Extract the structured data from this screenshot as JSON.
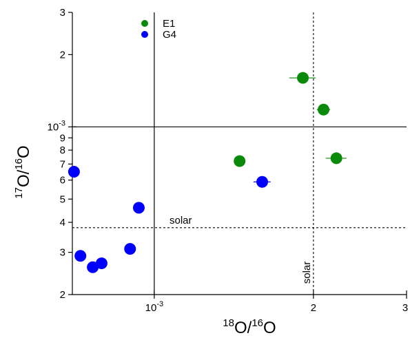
{
  "chart_data": {
    "type": "scatter",
    "xscale": "log",
    "yscale": "log",
    "xlim": [
      0.0007,
      0.003
    ],
    "ylim": [
      0.0002,
      0.003
    ],
    "xlabel_main": "O/",
    "xlabel_sup1": "18",
    "xlabel_sup2": "16",
    "xlabel_tail": "O",
    "ylabel_main": "O/",
    "ylabel_sup1": "17",
    "ylabel_sup2": "16",
    "ylabel_tail": "O",
    "x_ticks": [
      {
        "value": 0.001,
        "label": "10",
        "exp": "-3"
      },
      {
        "value": 0.002,
        "label": "2",
        "exp": ""
      },
      {
        "value": 0.003,
        "label": "3",
        "exp": ""
      }
    ],
    "y_ticks": [
      {
        "value": 0.0002,
        "label": "2",
        "exp": ""
      },
      {
        "value": 0.0003,
        "label": "3",
        "exp": ""
      },
      {
        "value": 0.0004,
        "label": "4",
        "exp": ""
      },
      {
        "value": 0.0005,
        "label": "5",
        "exp": ""
      },
      {
        "value": 0.0006,
        "label": "6",
        "exp": ""
      },
      {
        "value": 0.0007,
        "label": "7",
        "exp": ""
      },
      {
        "value": 0.0008,
        "label": "8",
        "exp": ""
      },
      {
        "value": 0.0009,
        "label": "9",
        "exp": ""
      },
      {
        "value": 0.001,
        "label": "10",
        "exp": "-3"
      },
      {
        "value": 0.002,
        "label": "2",
        "exp": ""
      },
      {
        "value": 0.003,
        "label": "3",
        "exp": ""
      }
    ],
    "reference_lines": [
      {
        "orientation": "vertical",
        "value": 0.002,
        "label": "solar"
      },
      {
        "orientation": "horizontal",
        "value": 0.00038,
        "label": "solar"
      }
    ],
    "legend_position": "top-left",
    "series": [
      {
        "name": "E1",
        "color": "#0a8a0a",
        "points": [
          {
            "x": 0.00145,
            "y": 0.00072,
            "xerr": 2e-05
          },
          {
            "x": 0.00191,
            "y": 0.0016,
            "xerr": 0.00011
          },
          {
            "x": 0.00209,
            "y": 0.00118,
            "xerr": 6e-05
          },
          {
            "x": 0.00221,
            "y": 0.00074,
            "xerr": 0.0001
          }
        ]
      },
      {
        "name": "G4",
        "color": "#0000ff",
        "points": [
          {
            "x": 0.000705,
            "y": 0.00065,
            "xerr": 0
          },
          {
            "x": 0.000935,
            "y": 0.00046,
            "xerr": 0
          },
          {
            "x": 0.0009,
            "y": 0.00031,
            "xerr": 0
          },
          {
            "x": 0.000725,
            "y": 0.00029,
            "xerr": 0
          },
          {
            "x": 0.000765,
            "y": 0.00026,
            "xerr": 0
          },
          {
            "x": 0.000795,
            "y": 0.00027,
            "xerr": 0
          },
          {
            "x": 0.0016,
            "y": 0.00059,
            "xerr": 6e-05
          }
        ]
      }
    ]
  }
}
